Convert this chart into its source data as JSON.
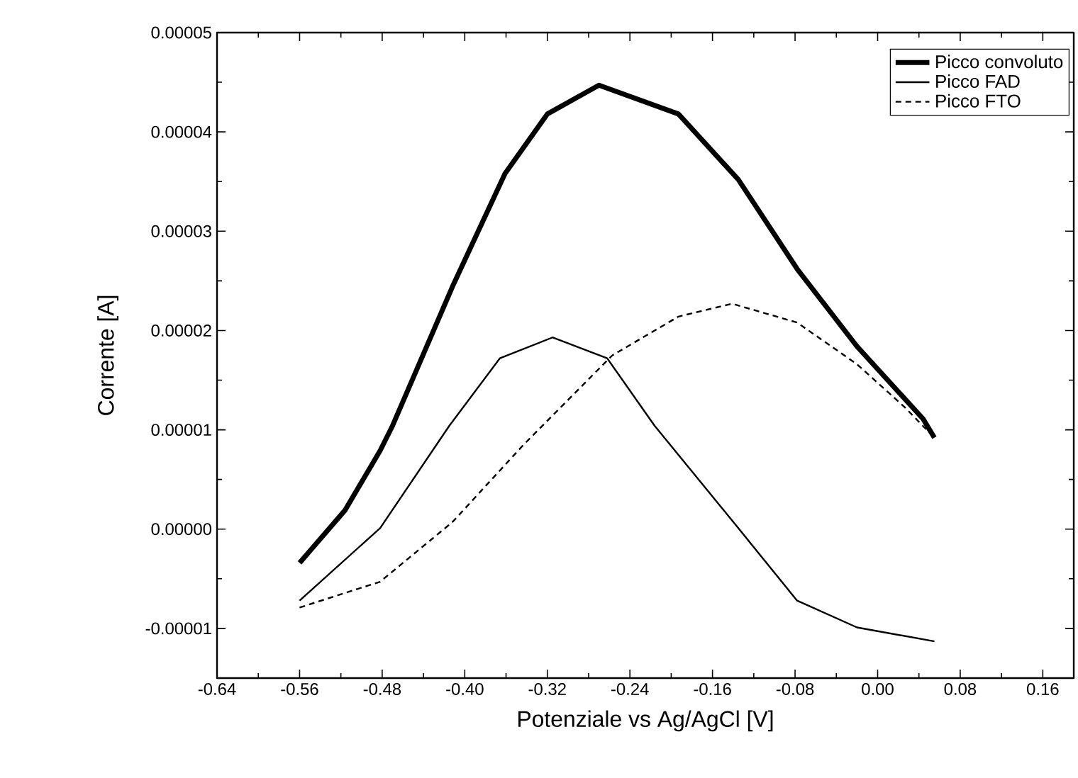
{
  "chart_data": {
    "type": "line",
    "xlabel": "Potenziale vs Ag/AgCl [V]",
    "ylabel": "Corrente [A]",
    "xlim": [
      -0.64,
      0.19
    ],
    "ylim": [
      -1.5e-05,
      5e-05
    ],
    "xticks": [
      {
        "value": -0.64,
        "label": "-0.64"
      },
      {
        "value": -0.56,
        "label": "-0.56"
      },
      {
        "value": -0.48,
        "label": "-0.48"
      },
      {
        "value": -0.4,
        "label": "-0.40"
      },
      {
        "value": -0.32,
        "label": "-0.32"
      },
      {
        "value": -0.24,
        "label": "-0.24"
      },
      {
        "value": -0.16,
        "label": "-0.16"
      },
      {
        "value": -0.08,
        "label": "-0.08"
      },
      {
        "value": 0,
        "label": "0.00"
      },
      {
        "value": 0.08,
        "label": "0.08"
      },
      {
        "value": 0.16,
        "label": "0.16"
      }
    ],
    "yticks": [
      {
        "value": -1e-05,
        "label": "-0.00001"
      },
      {
        "value": 0,
        "label": "0.00000"
      },
      {
        "value": 1e-05,
        "label": "0.00001"
      },
      {
        "value": 2e-05,
        "label": "0.00002"
      },
      {
        "value": 3e-05,
        "label": "0.00003"
      },
      {
        "value": 4e-05,
        "label": "0.00004"
      },
      {
        "value": 5e-05,
        "label": "0.00005"
      }
    ],
    "grid": false,
    "legend": "top right",
    "marker": "none",
    "series": [
      {
        "name": "Picco convoluto",
        "color": "#000000",
        "line_style": "solid",
        "x": [
          -0.56,
          -0.516,
          -0.482,
          -0.47,
          -0.412,
          -0.361,
          -0.32,
          -0.27,
          -0.193,
          -0.135,
          -0.078,
          -0.02,
          0.044,
          0.055
        ],
        "values": [
          -3.4e-06,
          1.9e-06,
          7.9e-06,
          1.04e-05,
          2.44e-05,
          3.58e-05,
          4.18e-05,
          4.47e-05,
          4.18e-05,
          3.52e-05,
          2.62e-05,
          1.84e-05,
          1.11e-05,
          9.2e-06
        ]
      },
      {
        "name": "Picco FAD",
        "color": "#000000",
        "line_style": "solid",
        "x": [
          -0.56,
          -0.482,
          -0.415,
          -0.366,
          -0.315,
          -0.262,
          -0.216,
          -0.135,
          -0.078,
          -0.02,
          0.055
        ],
        "values": [
          -7.2e-06,
          1e-07,
          1.04e-05,
          1.72e-05,
          1.93e-05,
          1.72e-05,
          1.04e-05,
          1e-07,
          -7.2e-06,
          -9.9e-06,
          -1.13e-05
        ]
      },
      {
        "name": "Picco FTO",
        "color": "#000000",
        "line_style": "dashed",
        "x": [
          -0.56,
          -0.482,
          -0.412,
          -0.343,
          -0.257,
          -0.193,
          -0.141,
          -0.078,
          -0.02,
          0.026,
          0.055
        ],
        "values": [
          -7.9e-06,
          -5.3e-06,
          7e-07,
          8.5e-06,
          1.75e-05,
          2.14e-05,
          2.27e-05,
          2.08e-05,
          1.66e-05,
          1.23e-05,
          9.2e-06
        ]
      }
    ]
  }
}
